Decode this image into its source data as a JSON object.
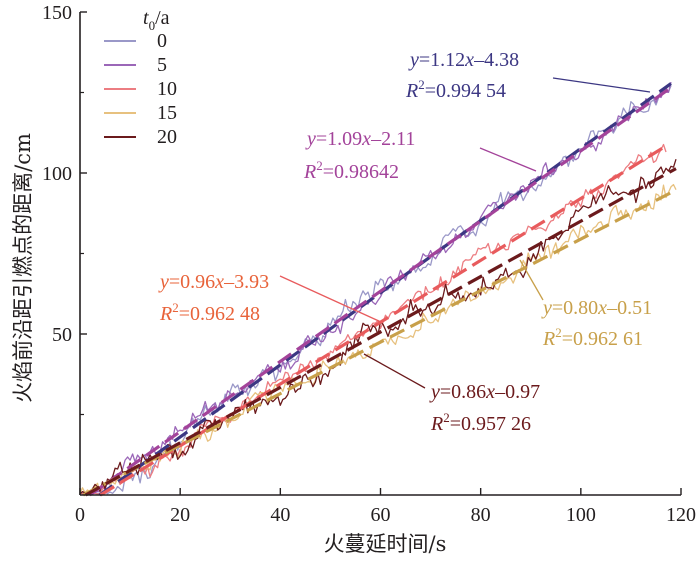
{
  "chart_data": {
    "type": "line",
    "title": "",
    "xlabel": "火蔓延时间/s",
    "ylabel": "火焰前沿距引燃点的距离/cm",
    "xlim": [
      0,
      120
    ],
    "ylim": [
      0,
      150
    ],
    "x_ticks": [
      "0",
      "20",
      "40",
      "60",
      "80",
      "100",
      "120"
    ],
    "y_ticks": [
      "50",
      "100",
      "150"
    ],
    "legend": {
      "title_main": "t",
      "title_sub": "0",
      "title_tail": "/a",
      "position": "top-left"
    },
    "series": [
      {
        "name": "0",
        "color": "#9a98c8",
        "fit_color": "#3c3783",
        "slope": 1.12,
        "intercept": -4.38,
        "x_end": 118,
        "noise": 2.2,
        "fit": {
          "y": "y",
          "eq_rest": "=1.12",
          "x": "x",
          "tail": "–4.38",
          "r": "R",
          "sq": "2",
          "r_rest": "=0.994 54"
        }
      },
      {
        "name": "5",
        "color": "#9b67b8",
        "fit_color": "#a3439a",
        "slope": 1.09,
        "intercept": -2.11,
        "x_end": 118,
        "noise": 2.0,
        "fit": {
          "y": "y",
          "eq_rest": "=1.09",
          "x": "x",
          "tail": "–2.11",
          "r": "R",
          "sq": "2",
          "r_rest": "=0.98642"
        }
      },
      {
        "name": "10",
        "color": "#ec7d82",
        "fit_color": "#e85b5d",
        "slope": 0.96,
        "intercept": -3.93,
        "x_end": 117,
        "noise": 2.0,
        "fit": {
          "y": "y",
          "eq_rest": "=0.96",
          "x": "x",
          "tail": "–3.93",
          "r": "R",
          "sq": "2",
          "r_rest": "=0.962 48"
        }
      },
      {
        "name": "15",
        "color": "#e7c17f",
        "fit_color": "#c8a04a",
        "slope": 0.8,
        "intercept": -0.51,
        "x_end": 119,
        "noise": 2.2,
        "fit": {
          "y": "y",
          "eq_rest": "=0.80",
          "x": "x",
          "tail": "–0.51",
          "r": "R",
          "sq": "2",
          "r_rest": "=0.962 61"
        }
      },
      {
        "name": "20",
        "color": "#6b1a1c",
        "fit_color": "#6b1a1c",
        "slope": 0.86,
        "intercept": -0.97,
        "x_end": 119,
        "noise": 2.6,
        "fit": {
          "y": "y",
          "eq_rest": "=0.86",
          "x": "x",
          "tail": "–0.97",
          "r": "R",
          "sq": "2",
          "r_rest": "=0.957 26"
        }
      }
    ]
  }
}
